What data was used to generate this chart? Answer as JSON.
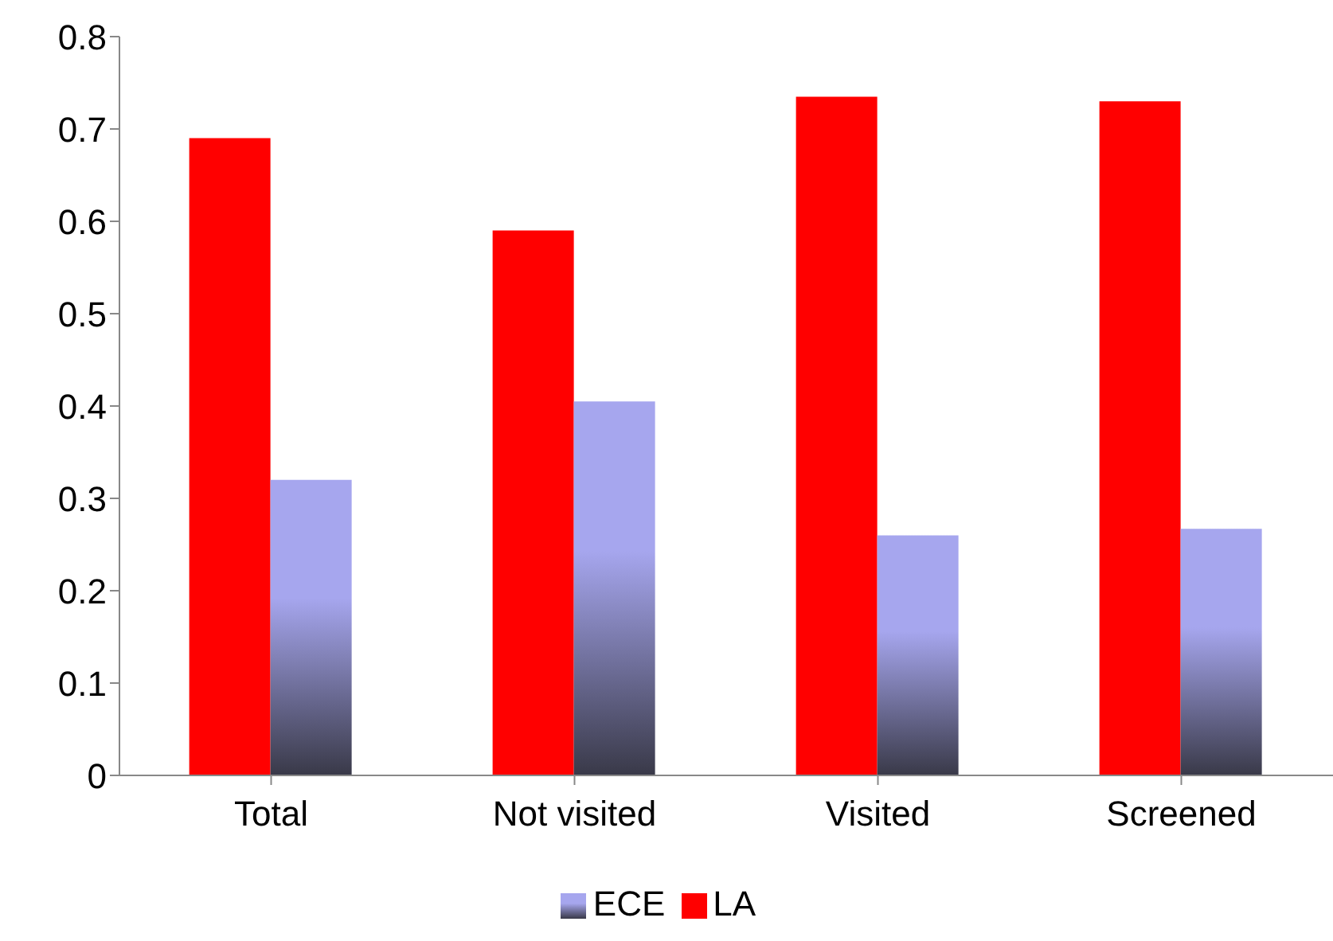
{
  "chart_data": {
    "type": "bar",
    "categories": [
      "Total",
      "Not visited",
      "Visited",
      "Screened"
    ],
    "series": [
      {
        "name": "LA",
        "color": "#ff0000",
        "values": [
          0.69,
          0.59,
          0.735,
          0.73
        ]
      },
      {
        "name": "ECE",
        "color": "#a6a6ee",
        "values": [
          0.32,
          0.405,
          0.26,
          0.267
        ]
      }
    ],
    "ylim": [
      0,
      0.8
    ],
    "yticks": [
      0,
      0.1,
      0.2,
      0.3,
      0.4,
      0.5,
      0.6,
      0.7,
      0.8
    ],
    "grid": false,
    "legend": "bottom"
  }
}
